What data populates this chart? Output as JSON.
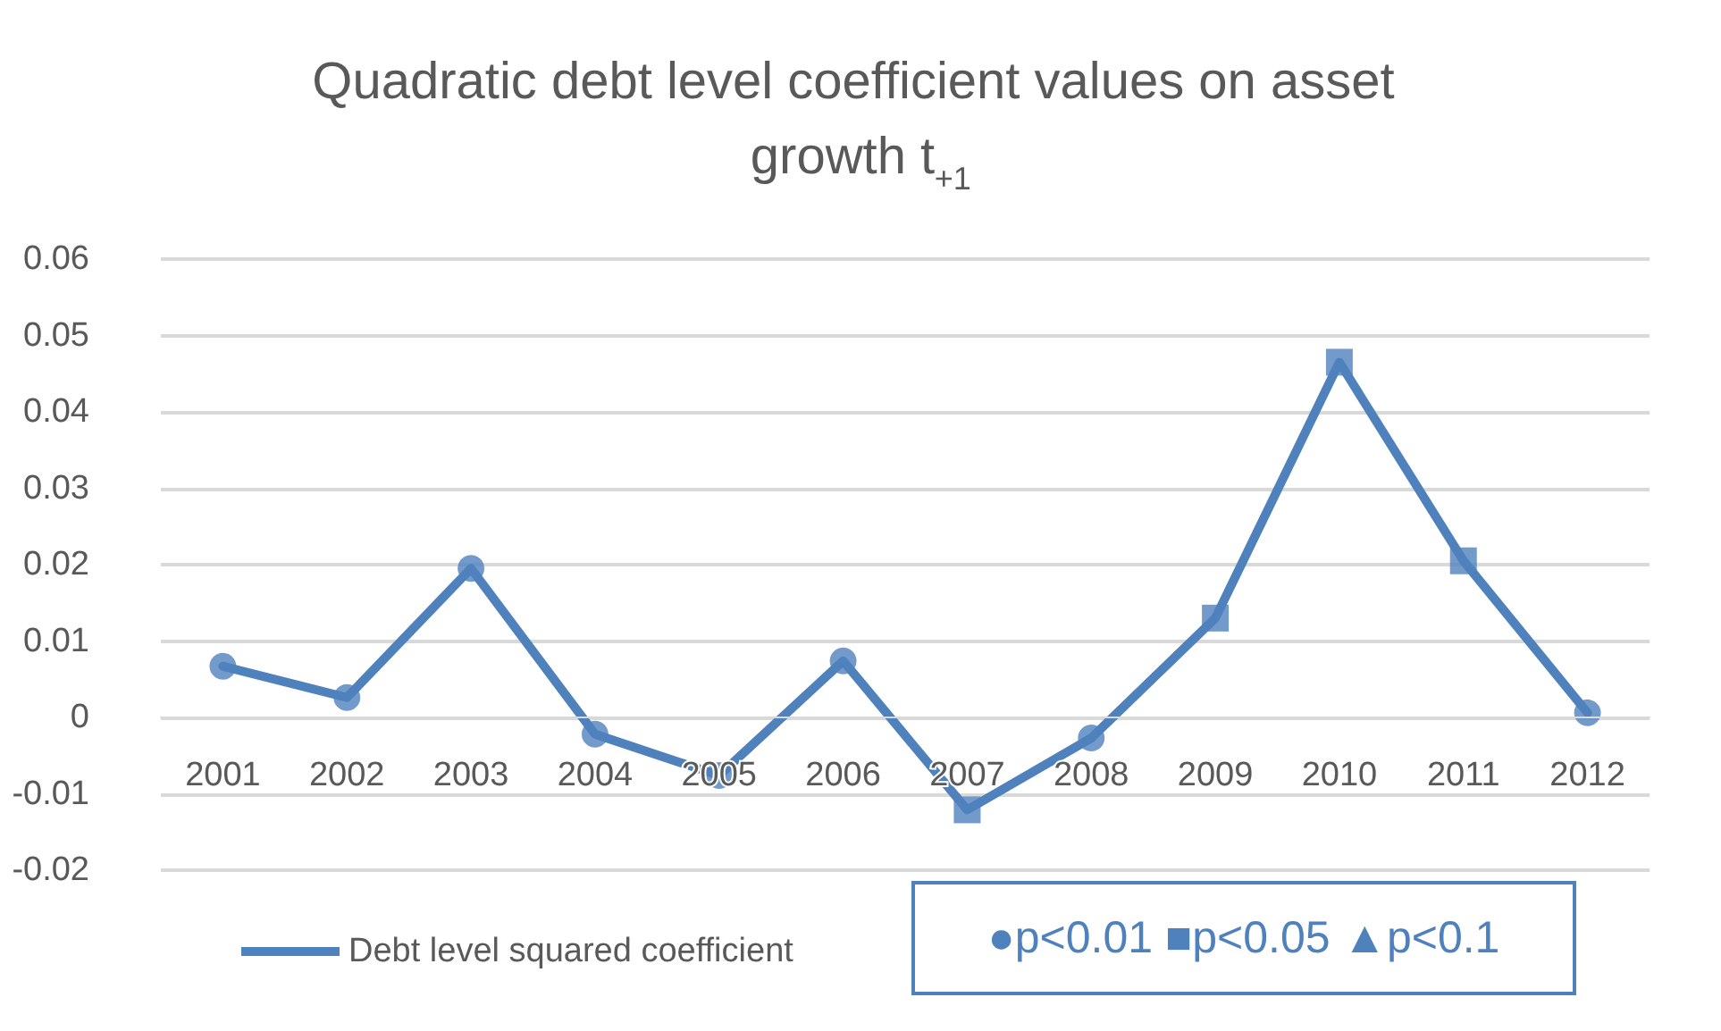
{
  "chart_data": {
    "type": "line",
    "title": "Quadratic debt level coefficient values on asset growth t$_{+1}$",
    "categories": [
      "2001",
      "2002",
      "2003",
      "2004",
      "2005",
      "2006",
      "2007",
      "2008",
      "2009",
      "2010",
      "2011",
      "2012"
    ],
    "series": [
      {
        "name": "Debt level squared coefficient",
        "color": "#4f81bd",
        "values": [
          0.0067,
          0.0026,
          0.0195,
          -0.0022,
          -0.0076,
          0.0074,
          -0.0121,
          -0.0027,
          0.013,
          0.0465,
          0.0205,
          0.0006
        ],
        "marker": "none"
      },
      {
        "type": "scatter",
        "color": "#4f81bd",
        "marker": "circle",
        "values": [
          0.0067,
          0.0026,
          0.0195,
          -0.0022,
          -0.0076,
          0.0074,
          null,
          -0.0027,
          null,
          null,
          null,
          0.0006
        ]
      },
      {
        "type": "scatter",
        "color": "#4f81bd",
        "marker": "square",
        "values": [
          null,
          null,
          null,
          null,
          null,
          null,
          -0.0121,
          null,
          0.013,
          0.0465,
          0.0205,
          null
        ]
      }
    ],
    "ylim": [
      -0.02,
      0.06
    ],
    "yticks": [
      -0.02,
      -0.01,
      0,
      0.01,
      0.02,
      0.03,
      0.04,
      0.05,
      0.06
    ],
    "grid": "y",
    "legend": "bottom",
    "line_style": "solid",
    "annotations": [
      "●p<0.01 ■p<0.05 ▲p<0.1"
    ]
  }
}
